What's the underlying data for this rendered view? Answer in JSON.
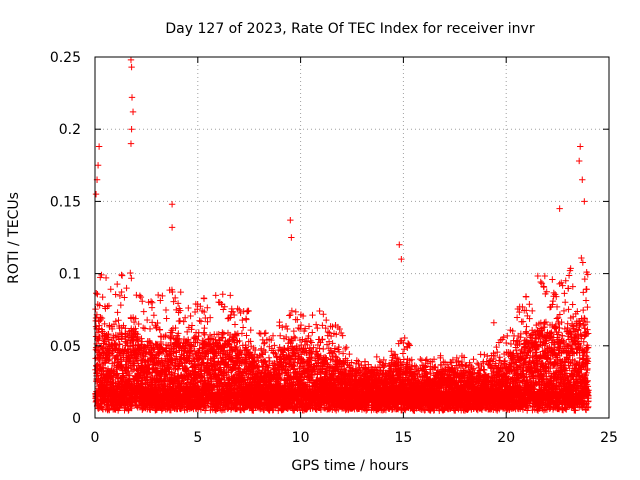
{
  "chart_data": {
    "type": "scatter",
    "title": "Day 127 of 2023, Rate Of TEC Index for receiver invr",
    "xlabel": "GPS time / hours",
    "ylabel": "ROTI / TECUs",
    "xlim": [
      0,
      25
    ],
    "ylim": [
      0,
      0.25
    ],
    "x_ticks": [
      0,
      5,
      10,
      15,
      20,
      25
    ],
    "x_tick_labels": [
      "0",
      "5",
      "10",
      "15",
      "20",
      "25"
    ],
    "y_ticks": [
      0,
      0.05,
      0.1,
      0.15,
      0.2,
      0.25
    ],
    "y_tick_labels": [
      "0",
      "0.05",
      "0.1",
      "0.15",
      "0.2",
      "0.25"
    ],
    "grid": true,
    "marker": "+",
    "series": [
      {
        "name": "ROTI",
        "color": "#ff0000",
        "description": "Dense scatter of ROTI samples from 0 to 24 h",
        "notable_points": [
          {
            "x": 1.75,
            "y": 0.248
          },
          {
            "x": 1.78,
            "y": 0.243
          },
          {
            "x": 1.8,
            "y": 0.222
          },
          {
            "x": 1.85,
            "y": 0.212
          },
          {
            "x": 1.78,
            "y": 0.2
          },
          {
            "x": 1.75,
            "y": 0.19
          },
          {
            "x": 0.2,
            "y": 0.188
          },
          {
            "x": 0.15,
            "y": 0.175
          },
          {
            "x": 0.1,
            "y": 0.165
          },
          {
            "x": 0.05,
            "y": 0.155
          },
          {
            "x": 3.75,
            "y": 0.148
          },
          {
            "x": 3.75,
            "y": 0.132
          },
          {
            "x": 9.5,
            "y": 0.137
          },
          {
            "x": 9.55,
            "y": 0.125
          },
          {
            "x": 14.8,
            "y": 0.12
          },
          {
            "x": 14.9,
            "y": 0.11
          },
          {
            "x": 23.6,
            "y": 0.188
          },
          {
            "x": 23.55,
            "y": 0.178
          },
          {
            "x": 23.7,
            "y": 0.165
          },
          {
            "x": 23.8,
            "y": 0.15
          },
          {
            "x": 22.6,
            "y": 0.145
          },
          {
            "x": 19.4,
            "y": 0.066
          }
        ],
        "envelope": {
          "hours": [
            0,
            0.5,
            1,
            1.5,
            2,
            2.5,
            3,
            3.5,
            4,
            4.5,
            5,
            5.5,
            6,
            6.5,
            7,
            7.5,
            8,
            8.5,
            9,
            9.5,
            10,
            10.5,
            11,
            11.5,
            12,
            12.5,
            13,
            13.5,
            14,
            14.5,
            15,
            15.5,
            16,
            16.5,
            17,
            17.5,
            18,
            18.5,
            19,
            19.5,
            20,
            20.5,
            21,
            21.5,
            22,
            22.5,
            23,
            23.5,
            24
          ],
          "upper": [
            0.12,
            0.1,
            0.09,
            0.11,
            0.09,
            0.08,
            0.085,
            0.09,
            0.09,
            0.085,
            0.085,
            0.09,
            0.085,
            0.09,
            0.08,
            0.075,
            0.06,
            0.06,
            0.07,
            0.085,
            0.075,
            0.08,
            0.075,
            0.07,
            0.06,
            0.045,
            0.04,
            0.045,
            0.04,
            0.05,
            0.06,
            0.045,
            0.04,
            0.045,
            0.045,
            0.045,
            0.045,
            0.045,
            0.045,
            0.05,
            0.06,
            0.08,
            0.09,
            0.1,
            0.1,
            0.1,
            0.1,
            0.12,
            0.1
          ],
          "lower": [
            0.005,
            0.005,
            0.005,
            0.005,
            0.005,
            0.005,
            0.005,
            0.005,
            0.005,
            0.005,
            0.005,
            0.005,
            0.005,
            0.005,
            0.005,
            0.005,
            0.005,
            0.005,
            0.005,
            0.005,
            0.005,
            0.005,
            0.005,
            0.005,
            0.005,
            0.005,
            0.005,
            0.005,
            0.005,
            0.005,
            0.005,
            0.005,
            0.005,
            0.005,
            0.005,
            0.005,
            0.005,
            0.005,
            0.005,
            0.005,
            0.005,
            0.005,
            0.005,
            0.005,
            0.005,
            0.005,
            0.005,
            0.005,
            0.005
          ]
        },
        "sample_step_hours": 0.008
      }
    ]
  }
}
